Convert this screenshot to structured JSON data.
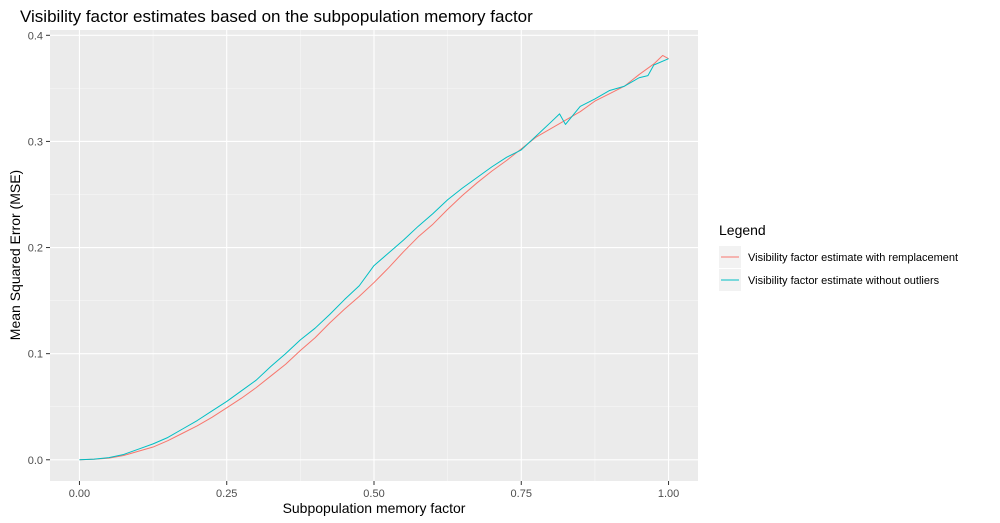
{
  "chart_data": {
    "type": "line",
    "title": "Visibility factor estimates based on the subpopulation memory factor",
    "xlabel": "Subpopulation memory factor",
    "ylabel": "Mean Squared Error (MSE)",
    "xlim": [
      -0.05,
      1.05
    ],
    "ylim": [
      -0.02,
      0.405
    ],
    "x_ticks": [
      0.0,
      0.25,
      0.5,
      0.75,
      1.0
    ],
    "x_tick_labels": [
      "0.00",
      "0.25",
      "0.50",
      "0.75",
      "1.00"
    ],
    "y_ticks": [
      0.0,
      0.1,
      0.2,
      0.3,
      0.4
    ],
    "y_tick_labels": [
      "0.0",
      "0.1",
      "0.2",
      "0.3",
      "0.4"
    ],
    "grid": true,
    "legend": {
      "title": "Legend",
      "position": "right"
    },
    "series": [
      {
        "name": "Visibility factor estimate with remplacement",
        "color": "#F8766D",
        "x": [
          0.0,
          0.025,
          0.05,
          0.075,
          0.1,
          0.125,
          0.15,
          0.175,
          0.2,
          0.225,
          0.25,
          0.275,
          0.3,
          0.325,
          0.35,
          0.375,
          0.4,
          0.425,
          0.45,
          0.475,
          0.5,
          0.525,
          0.55,
          0.575,
          0.6,
          0.625,
          0.65,
          0.675,
          0.7,
          0.725,
          0.75,
          0.775,
          0.8,
          0.825,
          0.85,
          0.875,
          0.9,
          0.925,
          0.95,
          0.975,
          0.99,
          1.0
        ],
        "y": [
          0.0,
          0.0005,
          0.0015,
          0.004,
          0.008,
          0.012,
          0.018,
          0.025,
          0.032,
          0.04,
          0.049,
          0.058,
          0.068,
          0.079,
          0.09,
          0.103,
          0.115,
          0.129,
          0.142,
          0.154,
          0.167,
          0.181,
          0.196,
          0.21,
          0.222,
          0.236,
          0.249,
          0.261,
          0.272,
          0.282,
          0.293,
          0.304,
          0.312,
          0.32,
          0.328,
          0.338,
          0.345,
          0.352,
          0.363,
          0.373,
          0.381,
          0.378
        ]
      },
      {
        "name": "Visibility factor estimate without outliers",
        "color": "#00BFC4",
        "x": [
          0.0,
          0.025,
          0.05,
          0.075,
          0.1,
          0.125,
          0.15,
          0.175,
          0.2,
          0.225,
          0.25,
          0.275,
          0.3,
          0.325,
          0.35,
          0.375,
          0.4,
          0.425,
          0.45,
          0.475,
          0.5,
          0.525,
          0.55,
          0.575,
          0.6,
          0.625,
          0.65,
          0.675,
          0.7,
          0.725,
          0.75,
          0.775,
          0.8,
          0.815,
          0.825,
          0.85,
          0.875,
          0.9,
          0.925,
          0.95,
          0.965,
          0.975,
          1.0
        ],
        "y": [
          0.0,
          0.0006,
          0.002,
          0.005,
          0.01,
          0.015,
          0.021,
          0.029,
          0.037,
          0.046,
          0.055,
          0.065,
          0.075,
          0.088,
          0.1,
          0.113,
          0.124,
          0.137,
          0.151,
          0.164,
          0.183,
          0.195,
          0.207,
          0.22,
          0.232,
          0.245,
          0.256,
          0.266,
          0.276,
          0.285,
          0.292,
          0.305,
          0.318,
          0.326,
          0.316,
          0.333,
          0.34,
          0.348,
          0.352,
          0.36,
          0.362,
          0.372,
          0.378
        ]
      }
    ]
  }
}
